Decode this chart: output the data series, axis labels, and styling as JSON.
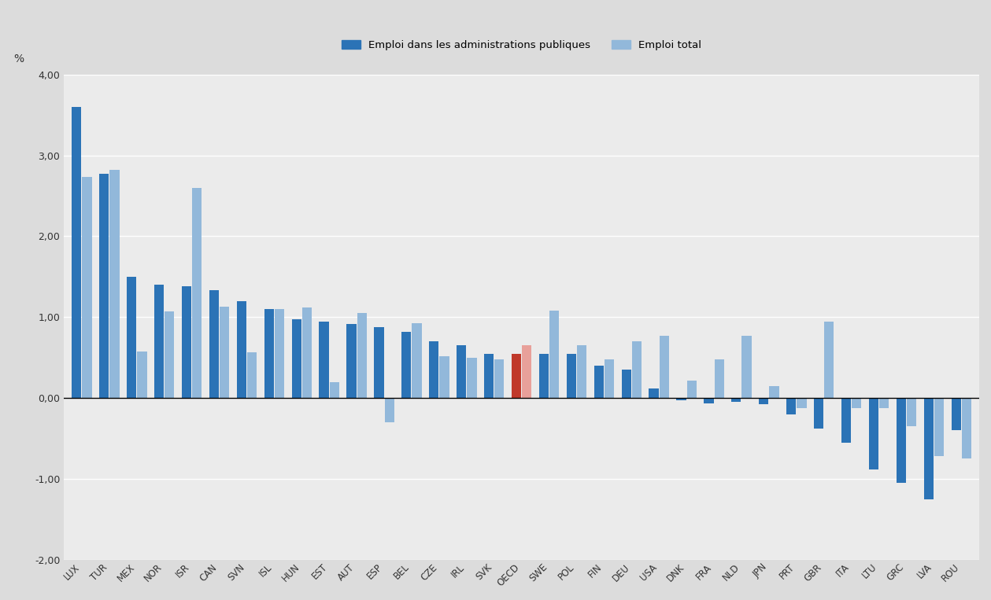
{
  "categories": [
    "LUX",
    "TUR",
    "MEX",
    "NOR",
    "ISR",
    "CAN",
    "SVN",
    "ISL",
    "HUN",
    "EST",
    "AUT",
    "ESP",
    "BEL",
    "CZE",
    "IRL",
    "SVK",
    "OECD",
    "SWE",
    "POL",
    "FIN",
    "DEU",
    "USA",
    "DNK",
    "FRA",
    "NLD",
    "JPN",
    "PRT",
    "GBR",
    "ITA",
    "LTU",
    "GRC",
    "LVA",
    "ROU"
  ],
  "public_employ": [
    3.6,
    2.77,
    1.5,
    1.4,
    1.38,
    1.33,
    1.2,
    1.1,
    0.97,
    0.95,
    0.92,
    0.88,
    0.82,
    0.7,
    0.65,
    0.55,
    0.55,
    0.55,
    0.55,
    0.4,
    0.35,
    0.12,
    -0.03,
    -0.07,
    -0.05,
    -0.08,
    -0.2,
    -0.38,
    -0.55,
    -0.88,
    -1.05,
    -1.25,
    -0.4
  ],
  "total_employ": [
    2.73,
    2.82,
    0.58,
    1.07,
    2.6,
    1.13,
    0.57,
    1.1,
    1.12,
    0.2,
    1.05,
    -0.3,
    0.93,
    0.52,
    0.5,
    0.48,
    0.65,
    1.08,
    0.65,
    0.48,
    0.7,
    0.77,
    0.22,
    0.48,
    0.77,
    0.15,
    -0.12,
    0.95,
    -0.12,
    -0.12,
    -0.35,
    -0.72,
    -0.75
  ],
  "public_color": "#2b73b6",
  "total_color": "#92b8da",
  "oecd_public_color": "#c0392b",
  "oecd_total_color": "#e8a09a",
  "outer_bg": "#dcdcdc",
  "inner_bg": "#ebebeb",
  "grid_color": "#ffffff",
  "legend_label_public": "Emploi dans les administrations publiques",
  "legend_label_total": "Emploi total",
  "ylabel": "%",
  "ylim": [
    -2.0,
    4.0
  ],
  "yticks": [
    -2.0,
    -1.0,
    0.0,
    1.0,
    2.0,
    3.0,
    4.0
  ],
  "ytick_labels": [
    "-2,00",
    "-1,00",
    "0,00",
    "1,00",
    "2,00",
    "3,00",
    "4,00"
  ]
}
